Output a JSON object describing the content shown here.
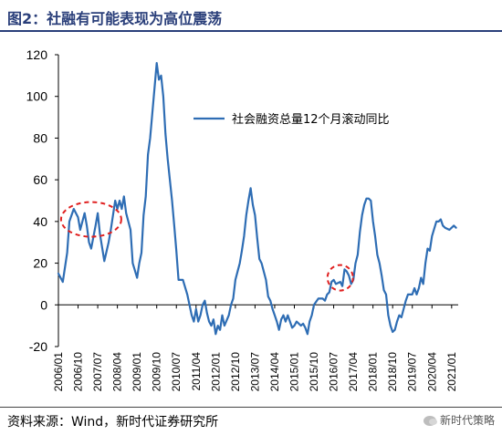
{
  "header": {
    "figure_label": "图2：",
    "title": "社融有可能表现为高位震荡"
  },
  "footer": {
    "source": "资料来源：Wind，新时代证券研究所",
    "watermark": "新时代策略"
  },
  "colors": {
    "series": "#2e6db4",
    "annotation": "#e02020",
    "title": "#2a3f7a",
    "axis": "#000000"
  },
  "chart_data": {
    "type": "line",
    "title": "",
    "xlabel": "",
    "ylabel": "",
    "ylim": [
      -20,
      120
    ],
    "yticks": [
      -20,
      0,
      20,
      40,
      60,
      80,
      100,
      120
    ],
    "x_tick_labels": [
      "2006/01",
      "2006/10",
      "2007/07",
      "2008/04",
      "2009/01",
      "2009/10",
      "2010/07",
      "2011/04",
      "2012/01",
      "2012/10",
      "2013/07",
      "2014/04",
      "2015/01",
      "2015/10",
      "2016/07",
      "2017/04",
      "2018/01",
      "2018/10",
      "2019/07",
      "2020/04",
      "2021/01"
    ],
    "x_range": [
      "2006-01",
      "2021-04"
    ],
    "grid": false,
    "legend": {
      "position": "top-right",
      "entries": [
        "社会融资总量12个月滚动同比"
      ]
    },
    "annotations": [
      {
        "type": "dashed-ellipse",
        "x_center": "2007-04",
        "y_center": 41
      },
      {
        "type": "dashed-ellipse",
        "x_center": "2016-10",
        "y_center": 13
      }
    ],
    "series": [
      {
        "name": "社会融资总量12个月滚动同比",
        "points": [
          [
            "2006-01",
            15
          ],
          [
            "2006-03",
            11
          ],
          [
            "2006-05",
            25
          ],
          [
            "2006-06",
            40
          ],
          [
            "2006-08",
            46
          ],
          [
            "2006-10",
            42
          ],
          [
            "2006-11",
            36
          ],
          [
            "2007-01",
            44
          ],
          [
            "2007-02",
            38
          ],
          [
            "2007-03",
            30
          ],
          [
            "2007-04",
            27
          ],
          [
            "2007-06",
            38
          ],
          [
            "2007-07",
            44
          ],
          [
            "2007-08",
            34
          ],
          [
            "2007-10",
            21
          ],
          [
            "2007-12",
            30
          ],
          [
            "2008-01",
            36
          ],
          [
            "2008-03",
            50
          ],
          [
            "2008-04",
            46
          ],
          [
            "2008-05",
            50
          ],
          [
            "2008-06",
            46
          ],
          [
            "2008-07",
            52
          ],
          [
            "2008-08",
            44
          ],
          [
            "2008-09",
            40
          ],
          [
            "2008-10",
            36
          ],
          [
            "2008-11",
            20
          ],
          [
            "2009-01",
            13
          ],
          [
            "2009-02",
            20
          ],
          [
            "2009-03",
            25
          ],
          [
            "2009-04",
            43
          ],
          [
            "2009-05",
            52
          ],
          [
            "2009-06",
            72
          ],
          [
            "2009-07",
            80
          ],
          [
            "2009-08",
            92
          ],
          [
            "2009-10",
            116
          ],
          [
            "2009-11",
            108
          ],
          [
            "2009-12",
            110
          ],
          [
            "2010-01",
            100
          ],
          [
            "2010-02",
            82
          ],
          [
            "2010-03",
            70
          ],
          [
            "2010-05",
            50
          ],
          [
            "2010-06",
            38
          ],
          [
            "2010-07",
            26
          ],
          [
            "2010-08",
            12
          ],
          [
            "2010-10",
            12
          ],
          [
            "2010-12",
            5
          ],
          [
            "2011-01",
            0
          ],
          [
            "2011-02",
            -5
          ],
          [
            "2011-03",
            -8
          ],
          [
            "2011-04",
            -2
          ],
          [
            "2011-05",
            -8
          ],
          [
            "2011-06",
            -5
          ],
          [
            "2011-07",
            0
          ],
          [
            "2011-08",
            2
          ],
          [
            "2011-09",
            -4
          ],
          [
            "2011-10",
            -8
          ],
          [
            "2011-11",
            -10
          ],
          [
            "2011-12",
            -7
          ],
          [
            "2012-01",
            -14
          ],
          [
            "2012-02",
            -10
          ],
          [
            "2012-03",
            -12
          ],
          [
            "2012-04",
            -5
          ],
          [
            "2012-05",
            -10
          ],
          [
            "2012-07",
            -5
          ],
          [
            "2012-08",
            0
          ],
          [
            "2012-09",
            3
          ],
          [
            "2012-10",
            12
          ],
          [
            "2012-11",
            16
          ],
          [
            "2012-12",
            20
          ],
          [
            "2013-01",
            26
          ],
          [
            "2013-02",
            33
          ],
          [
            "2013-03",
            43
          ],
          [
            "2013-04",
            50
          ],
          [
            "2013-05",
            56
          ],
          [
            "2013-06",
            48
          ],
          [
            "2013-07",
            43
          ],
          [
            "2013-08",
            32
          ],
          [
            "2013-09",
            22
          ],
          [
            "2013-10",
            20
          ],
          [
            "2013-12",
            12
          ],
          [
            "2014-01",
            4
          ],
          [
            "2014-02",
            2
          ],
          [
            "2014-03",
            -2
          ],
          [
            "2014-04",
            -5
          ],
          [
            "2014-05",
            -8
          ],
          [
            "2014-06",
            -12
          ],
          [
            "2014-07",
            -7
          ],
          [
            "2014-08",
            -5
          ],
          [
            "2014-09",
            -8
          ],
          [
            "2014-10",
            -5
          ],
          [
            "2014-11",
            -8
          ],
          [
            "2014-12",
            -11
          ],
          [
            "2015-01",
            -10
          ],
          [
            "2015-02",
            -8
          ],
          [
            "2015-04",
            -10
          ],
          [
            "2015-05",
            -9
          ],
          [
            "2015-06",
            -11
          ],
          [
            "2015-07",
            -14
          ],
          [
            "2015-08",
            -8
          ],
          [
            "2015-09",
            -5
          ],
          [
            "2015-10",
            0
          ],
          [
            "2015-12",
            3
          ],
          [
            "2016-02",
            3
          ],
          [
            "2016-03",
            2
          ],
          [
            "2016-04",
            5
          ],
          [
            "2016-05",
            6
          ],
          [
            "2016-06",
            11
          ],
          [
            "2016-07",
            12
          ],
          [
            "2016-08",
            10
          ],
          [
            "2016-10",
            11
          ],
          [
            "2016-11",
            9
          ],
          [
            "2016-12",
            17
          ],
          [
            "2017-01",
            16
          ],
          [
            "2017-02",
            14
          ],
          [
            "2017-03",
            10
          ],
          [
            "2017-04",
            12
          ],
          [
            "2017-05",
            20
          ],
          [
            "2017-06",
            24
          ],
          [
            "2017-07",
            35
          ],
          [
            "2017-08",
            43
          ],
          [
            "2017-09",
            48
          ],
          [
            "2017-10",
            51
          ],
          [
            "2017-11",
            51
          ],
          [
            "2017-12",
            50
          ],
          [
            "2018-01",
            40
          ],
          [
            "2018-02",
            33
          ],
          [
            "2018-03",
            24
          ],
          [
            "2018-04",
            20
          ],
          [
            "2018-05",
            14
          ],
          [
            "2018-06",
            7
          ],
          [
            "2018-07",
            5
          ],
          [
            "2018-08",
            -5
          ],
          [
            "2018-09",
            -10
          ],
          [
            "2018-10",
            -13
          ],
          [
            "2018-11",
            -12
          ],
          [
            "2018-12",
            -8
          ],
          [
            "2019-01",
            -5
          ],
          [
            "2019-02",
            -6
          ],
          [
            "2019-03",
            -2
          ],
          [
            "2019-04",
            2
          ],
          [
            "2019-05",
            5
          ],
          [
            "2019-07",
            5
          ],
          [
            "2019-08",
            8
          ],
          [
            "2019-09",
            5
          ],
          [
            "2019-10",
            8
          ],
          [
            "2019-11",
            13
          ],
          [
            "2019-12",
            10
          ],
          [
            "2020-01",
            20
          ],
          [
            "2020-02",
            27
          ],
          [
            "2020-03",
            26
          ],
          [
            "2020-04",
            33
          ],
          [
            "2020-06",
            40
          ],
          [
            "2020-07",
            40
          ],
          [
            "2020-08",
            41
          ],
          [
            "2020-09",
            38
          ],
          [
            "2020-10",
            37
          ],
          [
            "2020-12",
            36
          ],
          [
            "2021-02",
            38
          ],
          [
            "2021-03",
            37
          ]
        ]
      }
    ]
  }
}
